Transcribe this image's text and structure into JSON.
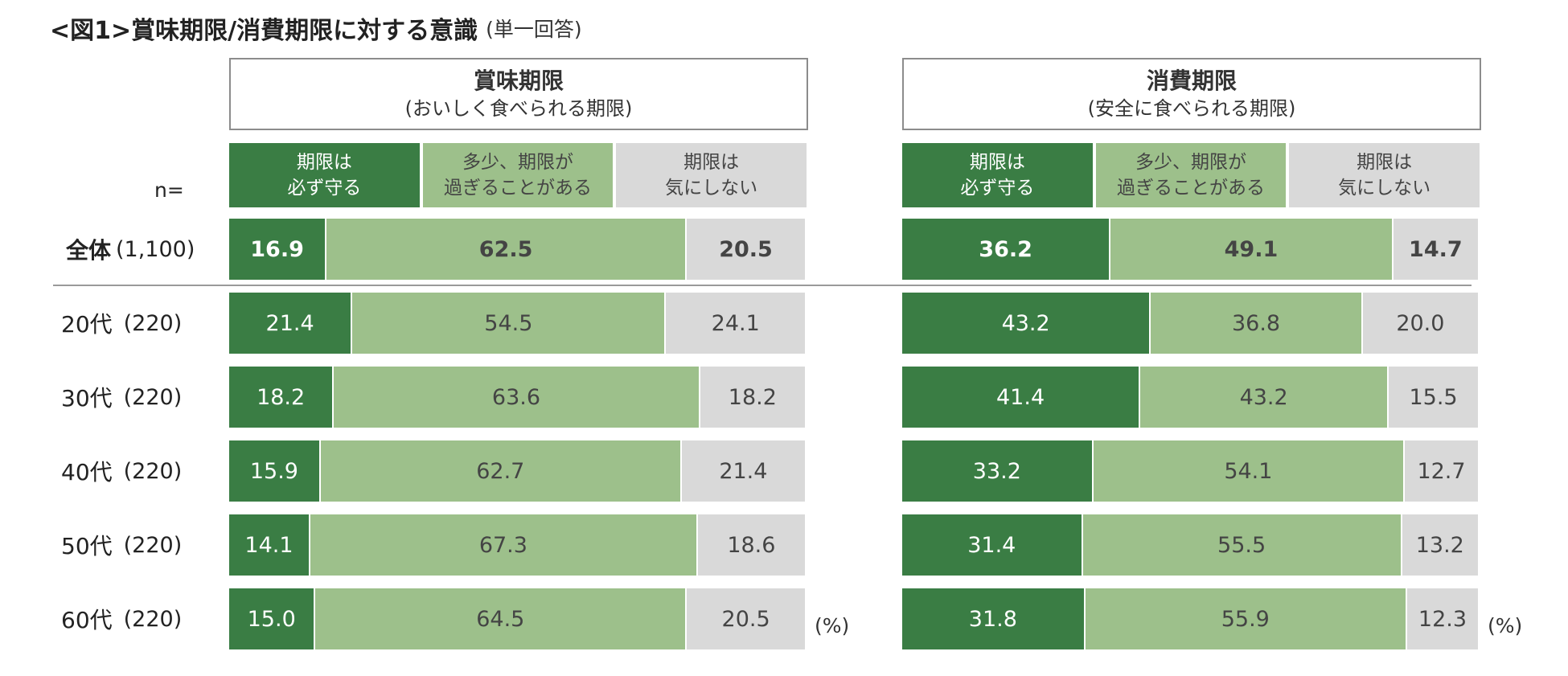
{
  "title": "<図1>賞味期限/消費期限に対する意識",
  "subtitle": "(単一回答)",
  "n_label": "n=",
  "percent_label": "(%)",
  "colors": {
    "must_keep": "#3a7d44",
    "sometimes_exceed": "#9dc08b",
    "dont_care": "#d9d9d9"
  },
  "chart_data": [
    {
      "type": "bar",
      "stacked": "100%",
      "orientation": "horizontal",
      "title": "賞味期限",
      "subtitle": "(おいしく食べられる期限)",
      "categories": [
        "全体",
        "20代",
        "30代",
        "40代",
        "50代",
        "60代"
      ],
      "n": [
        "(1,100)",
        "(220)",
        "(220)",
        "(220)",
        "(220)",
        "(220)"
      ],
      "series": [
        {
          "name": "期限は\n必ず守る",
          "values": [
            16.9,
            21.4,
            18.2,
            15.9,
            14.1,
            15.0
          ]
        },
        {
          "name": "多少、期限が\n過ぎることがある",
          "values": [
            62.5,
            54.5,
            63.6,
            62.7,
            67.3,
            64.5
          ]
        },
        {
          "name": "期限は\n気にしない",
          "values": [
            20.5,
            24.1,
            18.2,
            21.4,
            18.6,
            20.5
          ]
        }
      ],
      "unit": "(%)"
    },
    {
      "type": "bar",
      "stacked": "100%",
      "orientation": "horizontal",
      "title": "消費期限",
      "subtitle": "(安全に食べられる期限)",
      "categories": [
        "全体",
        "20代",
        "30代",
        "40代",
        "50代",
        "60代"
      ],
      "n": [
        "(1,100)",
        "(220)",
        "(220)",
        "(220)",
        "(220)",
        "(220)"
      ],
      "series": [
        {
          "name": "期限は\n必ず守る",
          "values": [
            36.2,
            43.2,
            41.4,
            33.2,
            31.4,
            31.8
          ]
        },
        {
          "name": "多少、期限が\n過ぎることがある",
          "values": [
            49.1,
            36.8,
            43.2,
            54.1,
            55.5,
            55.9
          ]
        },
        {
          "name": "期限は\n気にしない",
          "values": [
            14.7,
            20.0,
            15.5,
            12.7,
            13.2,
            12.3
          ]
        }
      ],
      "unit": "(%)"
    }
  ]
}
